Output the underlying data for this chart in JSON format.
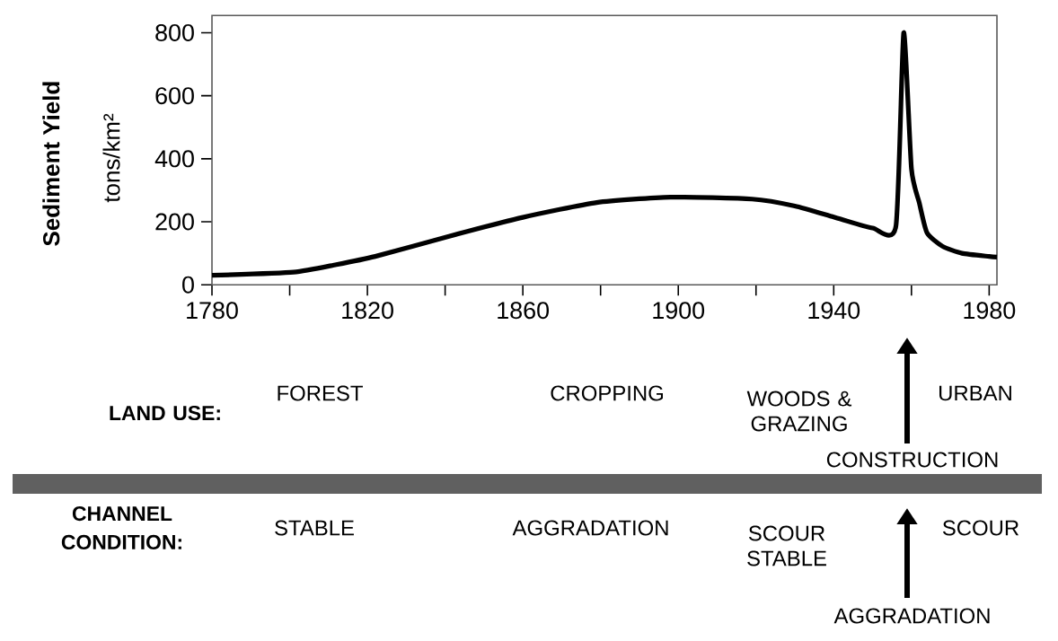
{
  "chart_data": {
    "type": "line",
    "ylabel": "Sediment Yield",
    "x": [
      1780,
      1801,
      1812,
      1822,
      1841,
      1860,
      1879,
      1898,
      1919,
      1930,
      1940,
      1950,
      1956,
      1958,
      1960,
      1962,
      1964,
      1968,
      1973,
      1980,
      1982
    ],
    "series": [
      {
        "color": "#000000",
        "values": [
          30,
          40,
          64,
          90,
          154,
          214,
          261,
          278,
          272,
          250,
          215,
          180,
          186,
          800,
          368,
          261,
          165,
          122,
          100,
          90,
          88
        ]
      }
    ],
    "xlim": [
      1780,
      1982
    ],
    "ylim": [
      0,
      855
    ],
    "xticks": [
      1780,
      {
        "value": 1800,
        "label": null
      },
      1820,
      {
        "value": 1840,
        "label": null
      },
      1860,
      {
        "value": 1880,
        "label": null
      },
      1900,
      {
        "value": 1920,
        "label": null
      },
      1940,
      {
        "value": 1960,
        "label": null
      },
      1980
    ],
    "yticks": [
      0,
      200,
      400,
      600,
      800
    ],
    "annotations": [
      "tons/km²",
      "LAND USE:",
      "FOREST",
      "CROPPING",
      "WOODS & GRAZING",
      "URBAN",
      "CONSTRUCTION",
      "CHANNEL CONDITION:",
      "STABLE",
      "AGGRADATION",
      "SCOUR STABLE",
      "SCOUR",
      "AGGRADATION"
    ]
  }
}
